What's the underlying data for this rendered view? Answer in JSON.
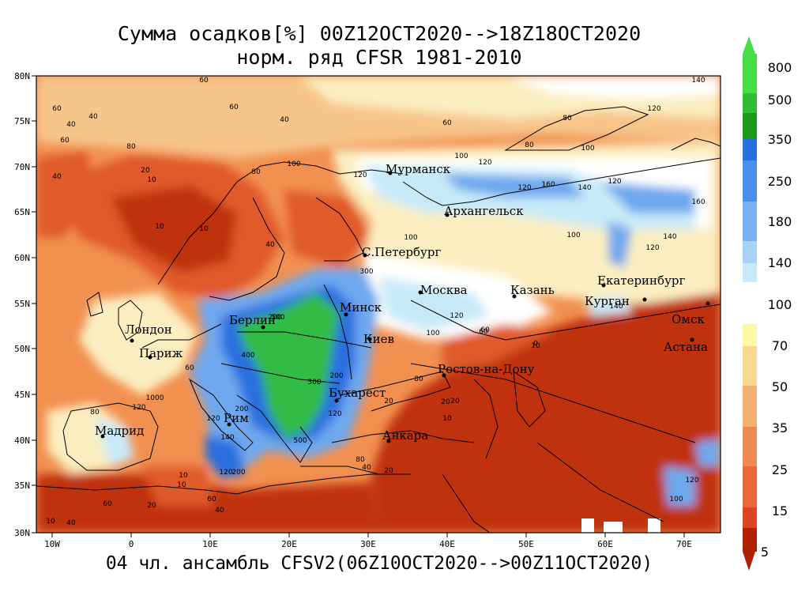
{
  "title": {
    "line1": "Сумма осадков[%] 00Z12OCT2020-->18Z18OCT2020",
    "line2": "норм. ряд CFSR 1981-2010"
  },
  "footer": "04 чл. ансамбль CFSV2(06Z10OCT2020-->00Z11OCT2020)",
  "axes": {
    "lat_labels": [
      "80N",
      "75N",
      "70N",
      "65N",
      "60N",
      "55N",
      "50N",
      "45N",
      "40N",
      "35N",
      "30N"
    ],
    "lon_labels": [
      "10W",
      "0",
      "10E",
      "20E",
      "30E",
      "40E",
      "50E",
      "60E",
      "70E"
    ]
  },
  "cities": [
    {
      "name": "Мурманск"
    },
    {
      "name": "Архангельск"
    },
    {
      "name": "С.Петербург"
    },
    {
      "name": "Москва"
    },
    {
      "name": "Казань"
    },
    {
      "name": "Екатеринбург"
    },
    {
      "name": "Курган"
    },
    {
      "name": "Омск"
    },
    {
      "name": "Астана"
    },
    {
      "name": "Минск"
    },
    {
      "name": "Берлин"
    },
    {
      "name": "Лондон"
    },
    {
      "name": "Париж"
    },
    {
      "name": "Киев"
    },
    {
      "name": "Ростов-на-Дону"
    },
    {
      "name": "Бухарест"
    },
    {
      "name": "Рим"
    },
    {
      "name": "Мадрид"
    },
    {
      "name": "Анкара"
    }
  ],
  "contour_labels": [
    "60",
    "40",
    "60",
    "60",
    "40",
    "40",
    "60",
    "80",
    "10",
    "20",
    "10",
    "40",
    "10",
    "80",
    "100",
    "120",
    "120",
    "140",
    "100",
    "160",
    "120",
    "140",
    "80",
    "100",
    "120",
    "100",
    "80",
    "60",
    "40",
    "300",
    "500",
    "200",
    "400",
    "300",
    "200",
    "120",
    "500",
    "200",
    "120",
    "140",
    "60",
    "20",
    "10",
    "80",
    "60",
    "120",
    "10",
    "10",
    "140",
    "160",
    "100",
    "120",
    "140",
    "120",
    "100",
    "60",
    "0",
    "20",
    "40",
    "20",
    "1000",
    "120",
    "80",
    "60",
    "40",
    "20",
    "10",
    "20",
    "10",
    "200",
    "120",
    "100",
    "120",
    "80",
    "60",
    "40"
  ],
  "colorbar": {
    "labels": [
      "800",
      "500",
      "350",
      "250",
      "180",
      "140",
      "100",
      "70",
      "50",
      "35",
      "25",
      "15",
      "5"
    ],
    "colors_upper": [
      "#44dd44",
      "#22bb22",
      "#118811",
      "#2a6fe0",
      "#4a90ea",
      "#7ab2f2",
      "#a8d2f8",
      "#c6eaf8"
    ],
    "colors_lower": [
      "#fdf8a8",
      "#f8d890",
      "#f4b070",
      "#ef8a50",
      "#e86838",
      "#dd4422",
      "#c83010",
      "#b02000"
    ]
  },
  "palette": {
    "very_dry": "#c03010",
    "dry": "#e05a2a",
    "mod_dry": "#f29050",
    "light_dry": "#f7c58a",
    "near_norm": "#fbeec0",
    "white": "#ffffff",
    "light_wet": "#c8eaf8",
    "wet": "#6ea8ee",
    "very_wet": "#2a6fe0",
    "extreme": "#33bb44"
  }
}
